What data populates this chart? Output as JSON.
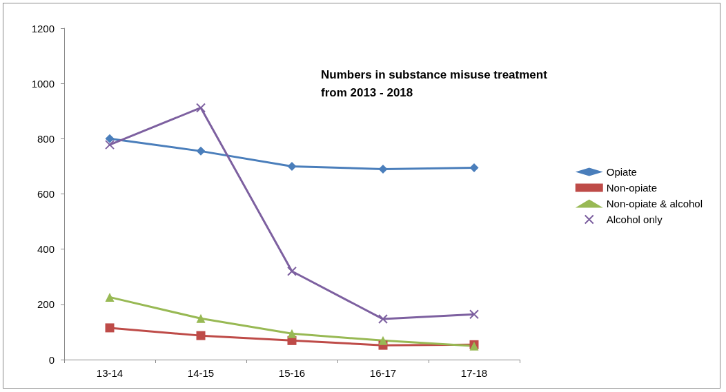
{
  "chart_data": {
    "type": "line",
    "title": "Numbers in substance misuse treatment\nfrom 2013 - 2018",
    "categories": [
      "13-14",
      "14-15",
      "15-16",
      "16-17",
      "17-18"
    ],
    "series": [
      {
        "name": "Opiate",
        "color": "#4a7ebb",
        "marker": "diamond",
        "values": [
          800,
          755,
          700,
          690,
          695
        ]
      },
      {
        "name": "Non-opiate",
        "color": "#be4b48",
        "marker": "square",
        "values": [
          115,
          87,
          69,
          52,
          54
        ]
      },
      {
        "name": "Non-opiate & alcohol",
        "color": "#98b954",
        "marker": "triangle",
        "values": [
          226,
          149,
          94,
          69,
          49
        ]
      },
      {
        "name": "Alcohol only",
        "color": "#7d60a0",
        "marker": "cross",
        "values": [
          778,
          912,
          320,
          147,
          164
        ]
      }
    ],
    "ylim": [
      0,
      1200
    ],
    "yticks": [
      0,
      200,
      400,
      600,
      800,
      1000,
      1200
    ],
    "grid": false,
    "legend": "right"
  }
}
